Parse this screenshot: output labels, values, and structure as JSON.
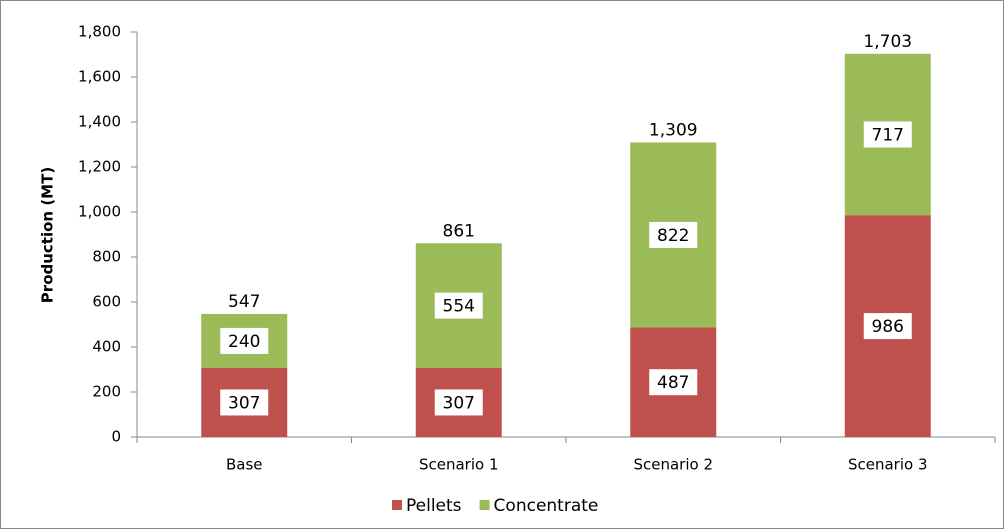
{
  "chart_data": {
    "type": "bar",
    "stacked": true,
    "y_label": "Production (MT)",
    "categories": [
      "Base",
      "Scenario 1",
      "Scenario 2",
      "Scenario 3"
    ],
    "series": [
      {
        "name": "Pellets",
        "color": "#c0504d",
        "values": [
          307,
          307,
          487,
          986
        ]
      },
      {
        "name": "Concentrate",
        "color": "#9bbb59",
        "values": [
          240,
          554,
          822,
          717
        ]
      }
    ],
    "totals": {
      "values": [
        547,
        861,
        1309,
        1703
      ],
      "value_labels": [
        "547",
        "861",
        "1,309",
        "1,703"
      ]
    },
    "ylim": [
      0,
      1800
    ],
    "yticks": [
      0,
      200,
      400,
      600,
      800,
      {
        "value": 1000,
        "label": "1,000"
      },
      {
        "value": 1200,
        "label": "1,200"
      },
      {
        "value": 1400,
        "label": "1,400"
      },
      {
        "value": 1600,
        "label": "1,600"
      },
      {
        "value": 1800,
        "label": "1,800"
      }
    ],
    "legend": "bottom"
  }
}
